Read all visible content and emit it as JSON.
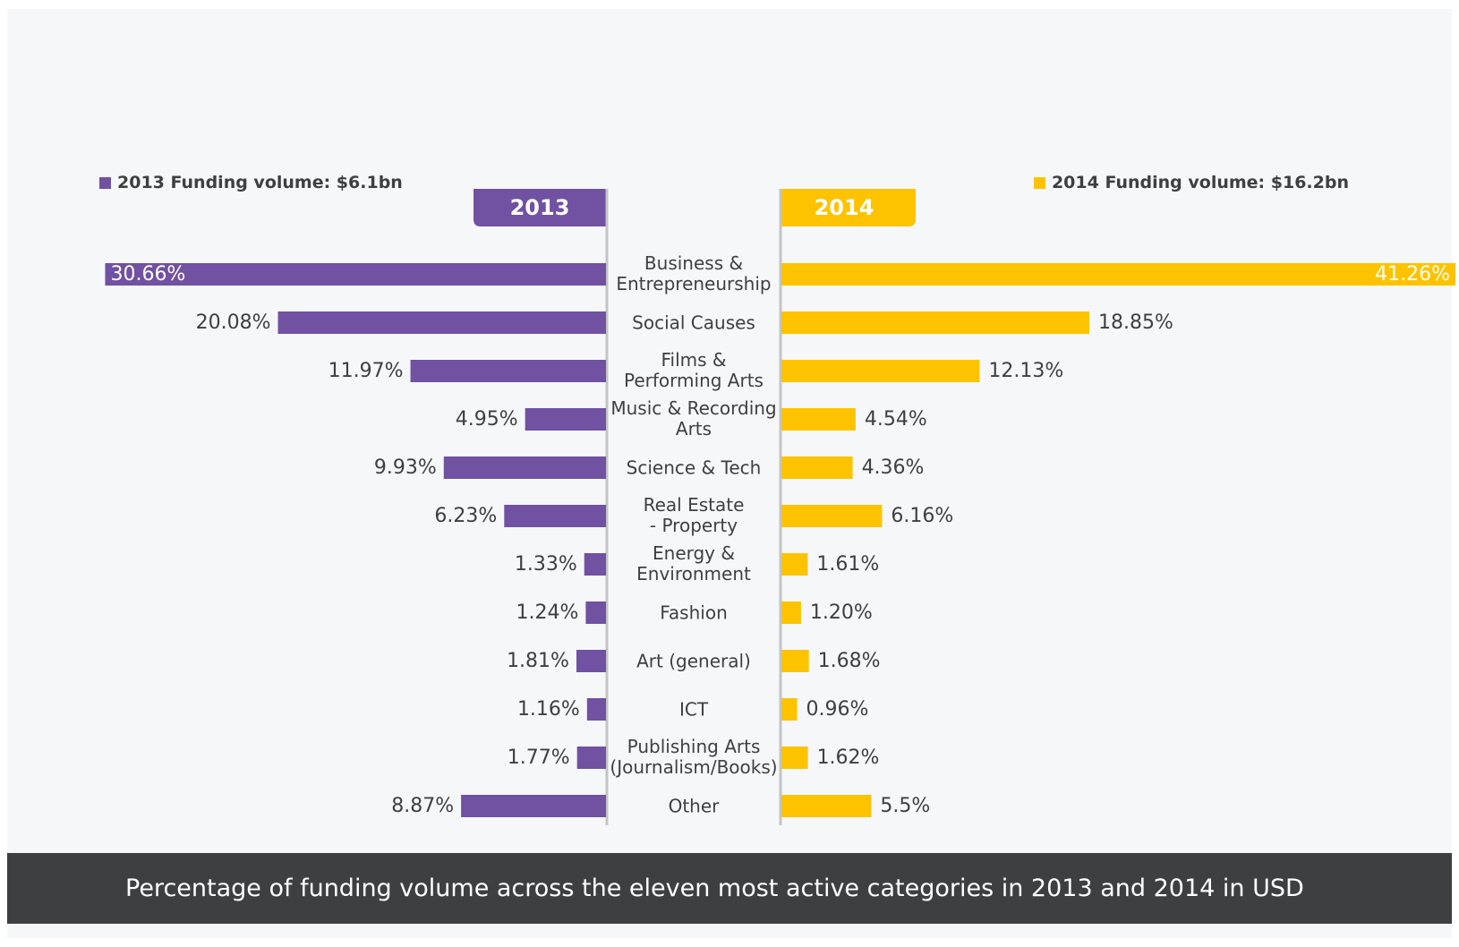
{
  "legend": {
    "left": "2013 Funding volume: $6.1bn",
    "right": "2014 Funding volume: $16.2bn"
  },
  "caption": "Percentage of funding volume across the eleven most active categories in 2013 and 2014 in USD",
  "colors": {
    "series_2013": "#7151a1",
    "series_2014": "#fdc300",
    "center_line": "#c4c4c4",
    "label_text": "#3f3f3f"
  },
  "chart_data": {
    "type": "bar",
    "orientation": "horizontal-diverging",
    "unit": "%",
    "categories": [
      [
        "Business &",
        "Entrepreneurship"
      ],
      [
        "Social Causes"
      ],
      [
        "Films &",
        "Performing Arts"
      ],
      [
        "Music & Recording",
        "Arts"
      ],
      [
        "Science & Tech"
      ],
      [
        "Real Estate",
        "- Property"
      ],
      [
        "Energy &",
        "Environment"
      ],
      [
        "Fashion"
      ],
      [
        "Art (general)"
      ],
      [
        "ICT"
      ],
      [
        "Publishing Arts",
        "(Journalism/Books)"
      ],
      [
        "Other"
      ]
    ],
    "series": [
      {
        "name": "2013",
        "side": "left",
        "values": [
          30.66,
          20.08,
          11.97,
          4.95,
          9.93,
          6.23,
          1.33,
          1.24,
          1.81,
          1.16,
          1.77,
          8.87
        ],
        "labels": [
          "30.66%",
          "20.08%",
          "11.97%",
          "4.95%",
          "9.93%",
          "6.23%",
          "1.33%",
          "1.24%",
          "1.81%",
          "1.16%",
          "1.77%",
          "8.87%"
        ]
      },
      {
        "name": "2014",
        "side": "right",
        "values": [
          41.26,
          18.85,
          12.13,
          4.54,
          4.36,
          6.16,
          1.61,
          1.2,
          1.68,
          0.96,
          1.62,
          5.5
        ],
        "labels": [
          "41.26%",
          "18.85%",
          "12.13%",
          "4.54%",
          "4.36%",
          "6.16%",
          "1.61%",
          "1.20%",
          "1.68%",
          "0.96%",
          "1.62%",
          "5.5%"
        ]
      }
    ]
  }
}
